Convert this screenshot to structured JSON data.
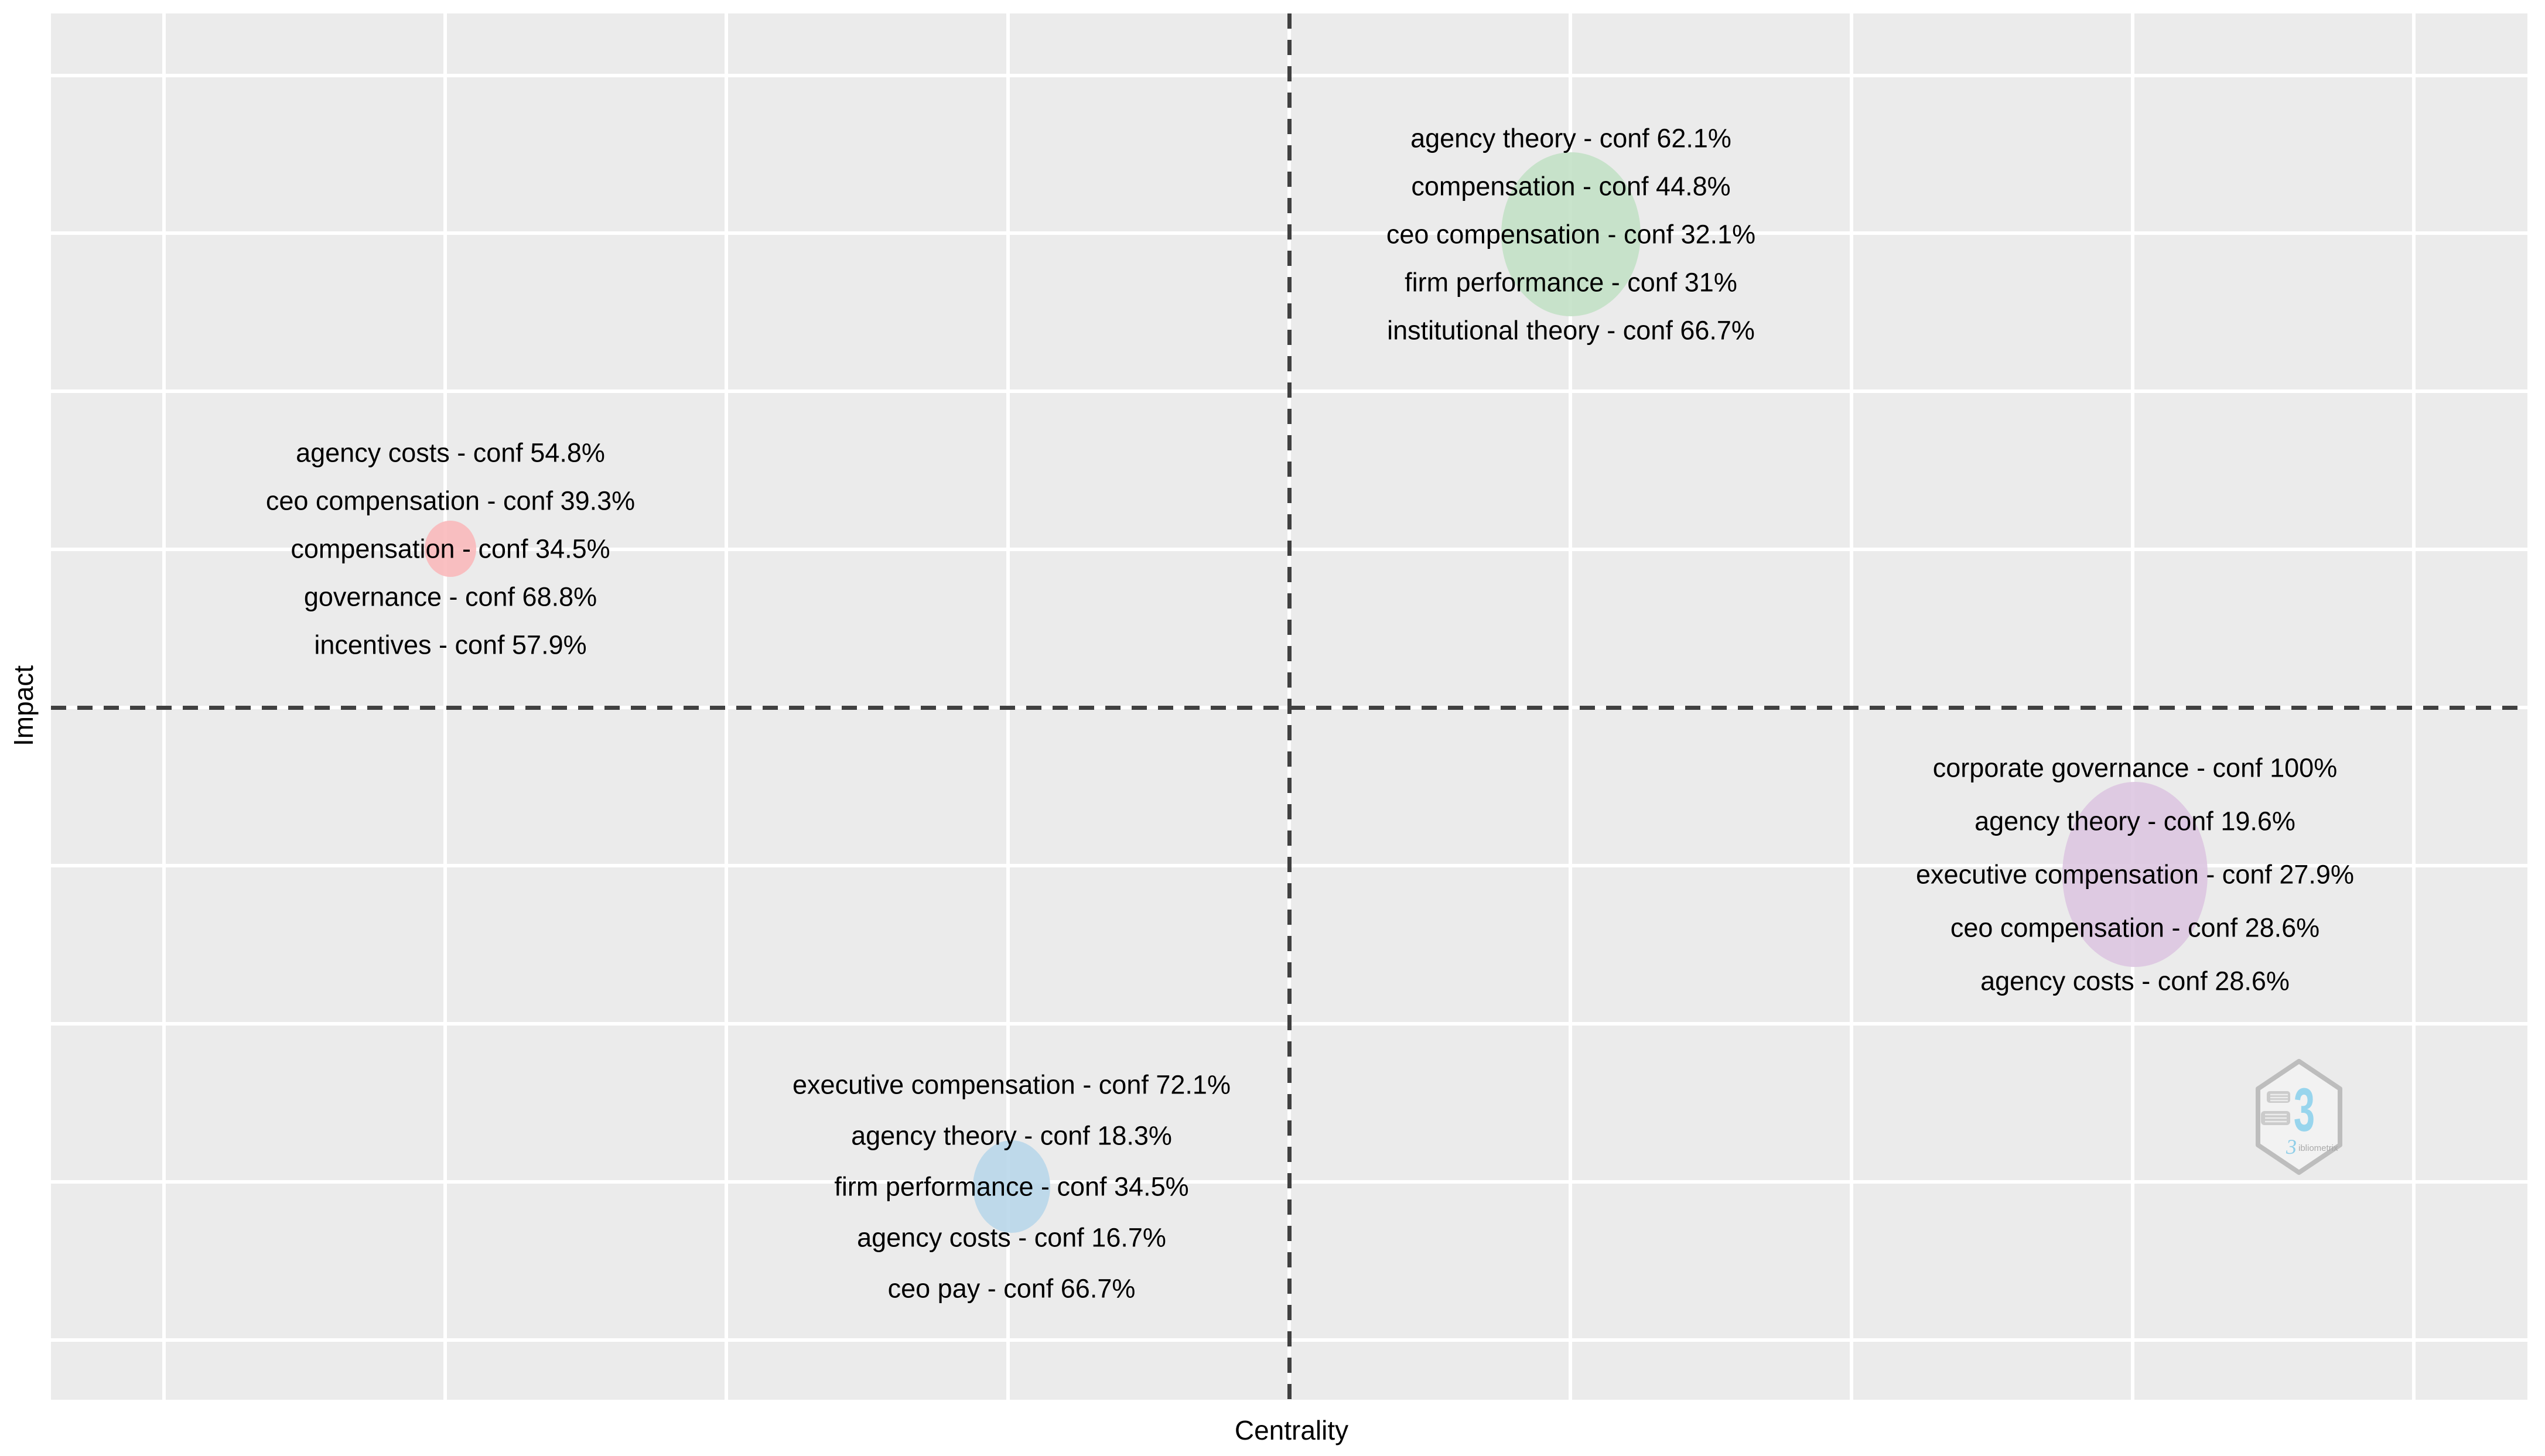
{
  "axes": {
    "x_label": "Centrality",
    "y_label": "Impact"
  },
  "quadrant_lines": {
    "style": "dashed",
    "color": "#404040"
  },
  "clusters": [
    {
      "name": "agency theory",
      "color": "#c1e0c5",
      "lines": [
        "agency theory - conf 62.1%",
        "compensation - conf 44.8%",
        "ceo compensation - conf 32.1%",
        "firm performance - conf 31%",
        "institutional theory - conf 66.7%"
      ]
    },
    {
      "name": "agency costs",
      "color": "#f9b7ba",
      "lines": [
        "agency costs - conf 54.8%",
        "ceo compensation - conf 39.3%",
        "compensation - conf 34.5%",
        "governance - conf 68.8%",
        "incentives - conf 57.9%"
      ]
    },
    {
      "name": "corporate governance",
      "color": "#dcc5e0",
      "lines": [
        "corporate governance - conf 100%",
        "agency theory - conf 19.6%",
        "executive compensation - conf 27.9%",
        "ceo compensation - conf 28.6%",
        "agency costs - conf 28.6%"
      ]
    },
    {
      "name": "executive compensation",
      "color": "#b7d6e9",
      "lines": [
        "executive compensation - conf 72.1%",
        "agency theory - conf 18.3%",
        "firm performance - conf 34.5%",
        "agency costs - conf 16.7%",
        "ceo pay - conf 66.7%"
      ]
    }
  ],
  "logo": {
    "mark": "3",
    "script_b": "3",
    "text": "ibliometrix"
  },
  "chart_data": {
    "type": "scatter",
    "subtype": "thematic-map-bubble",
    "title": "",
    "xlabel": "Centrality",
    "ylabel": "Impact",
    "axis_tick_labels": "none",
    "grid": true,
    "quadrant_crosshair": {
      "style": "dashed",
      "note": "positions below are in gridline units relative to the dashed crosshair origin"
    },
    "series": [
      {
        "name": "agency theory cluster",
        "color": "#c1e0c5",
        "x": 1,
        "y": 3,
        "bubble_radius_px": 130,
        "labels": [
          {
            "term": "agency theory",
            "conf_pct": 62.1
          },
          {
            "term": "compensation",
            "conf_pct": 44.8
          },
          {
            "term": "ceo compensation",
            "conf_pct": 32.1
          },
          {
            "term": "firm performance",
            "conf_pct": 31
          },
          {
            "term": "institutional theory",
            "conf_pct": 66.7
          }
        ]
      },
      {
        "name": "agency costs cluster",
        "color": "#f9b7ba",
        "x": -3,
        "y": 1,
        "bubble_radius_px": 46,
        "labels": [
          {
            "term": "agency costs",
            "conf_pct": 54.8
          },
          {
            "term": "ceo compensation",
            "conf_pct": 39.3
          },
          {
            "term": "compensation",
            "conf_pct": 34.5
          },
          {
            "term": "governance",
            "conf_pct": 68.8
          },
          {
            "term": "incentives",
            "conf_pct": 57.9
          }
        ]
      },
      {
        "name": "corporate governance cluster",
        "color": "#dcc5e0",
        "x": 3,
        "y": -1,
        "bubble_radius_px": 141,
        "labels": [
          {
            "term": "corporate governance",
            "conf_pct": 100
          },
          {
            "term": "agency theory",
            "conf_pct": 19.6
          },
          {
            "term": "executive compensation",
            "conf_pct": 27.9
          },
          {
            "term": "ceo compensation",
            "conf_pct": 28.6
          },
          {
            "term": "agency costs",
            "conf_pct": 28.6
          }
        ]
      },
      {
        "name": "executive compensation cluster",
        "color": "#b7d6e9",
        "x": -1,
        "y": -3,
        "bubble_radius_px": 72,
        "labels": [
          {
            "term": "executive compensation",
            "conf_pct": 72.1
          },
          {
            "term": "agency theory",
            "conf_pct": 18.3
          },
          {
            "term": "firm performance",
            "conf_pct": 34.5
          },
          {
            "term": "agency costs",
            "conf_pct": 16.7
          },
          {
            "term": "ceo pay",
            "conf_pct": 66.7
          }
        ]
      }
    ]
  }
}
